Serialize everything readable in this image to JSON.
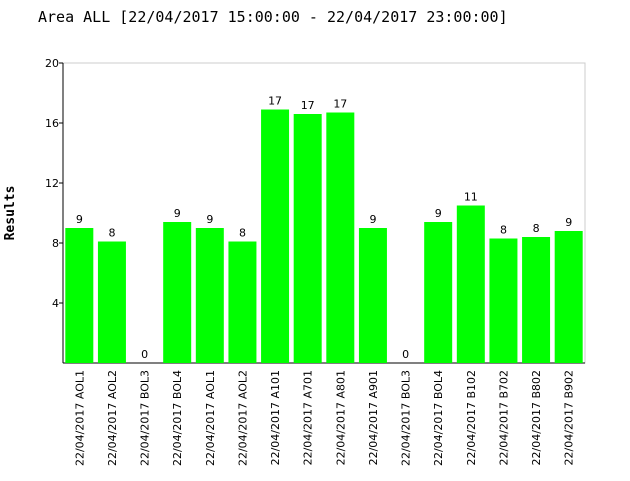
{
  "chart_data": {
    "type": "bar",
    "title": "Area ALL [22/04/2017 15:00:00 - 22/04/2017 23:00:00]",
    "y_label": "Results",
    "categories": [
      "22/04/2017 AOL1",
      "22/04/2017 AOL2",
      "22/04/2017 BOL3",
      "22/04/2017 BOL4",
      "22/04/2017 AOL1",
      "22/04/2017 AOL2",
      "22/04/2017 A101",
      "22/04/2017 A701",
      "22/04/2017 A801",
      "22/04/2017 A901",
      "22/04/2017 BOL3",
      "22/04/2017 BOL4",
      "22/04/2017 B102",
      "22/04/2017 B702",
      "22/04/2017 B802",
      "22/04/2017 B902"
    ],
    "values": [
      9.0,
      8.1,
      0,
      9.4,
      9.0,
      8.1,
      16.9,
      16.6,
      16.7,
      9.0,
      0,
      9.4,
      10.5,
      8.3,
      8.4,
      8.8
    ],
    "value_labels": [
      "9",
      "8",
      "0",
      "9",
      "9",
      "8",
      "17",
      "17",
      "17",
      "9",
      "0",
      "9",
      "11",
      "8",
      "8",
      "9"
    ],
    "color": "#00ff00",
    "ylim": [
      0,
      20
    ],
    "yticks": [
      4,
      8,
      12,
      16,
      20
    ]
  }
}
